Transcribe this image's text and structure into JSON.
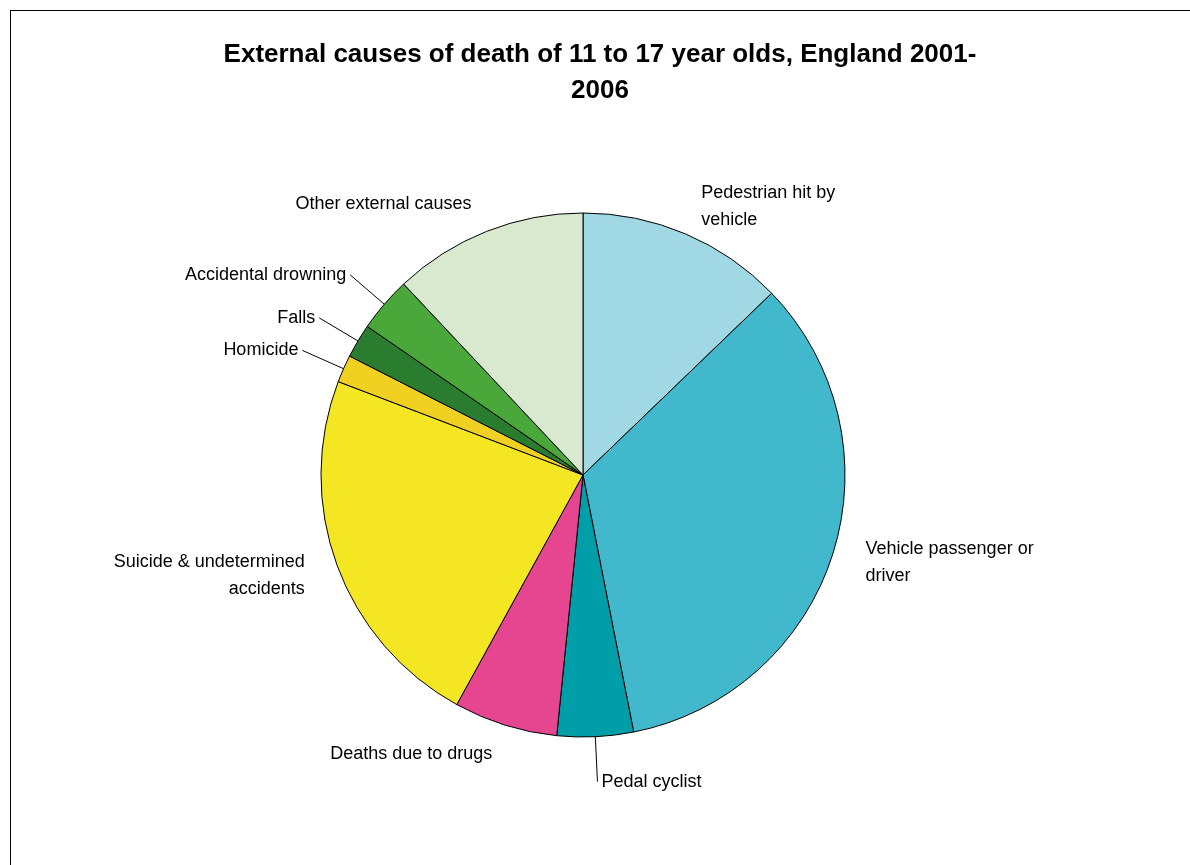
{
  "chart_data": {
    "type": "pie",
    "title": "External causes of death of 11 to 17 year olds, England 2001-2006",
    "categories": [
      "Pedestrian hit by vehicle",
      "Vehicle passenger or driver",
      "Pedal cyclist",
      "Deaths due to drugs",
      "Suicide & undetermined accidents",
      "Homicide",
      "Falls",
      "Accidental drowning",
      "Other external causes"
    ],
    "values": [
      12.8,
      34.1,
      4.7,
      6.4,
      22.8,
      1.7,
      2.1,
      3.4,
      12.0
    ],
    "colors": [
      "#a0d8e4",
      "#42b8cc",
      "#009ea8",
      "#e64590",
      "#f5e623",
      "#f0d020",
      "#2a7d2e",
      "#4aa83a",
      "#d9e9d0"
    ]
  }
}
